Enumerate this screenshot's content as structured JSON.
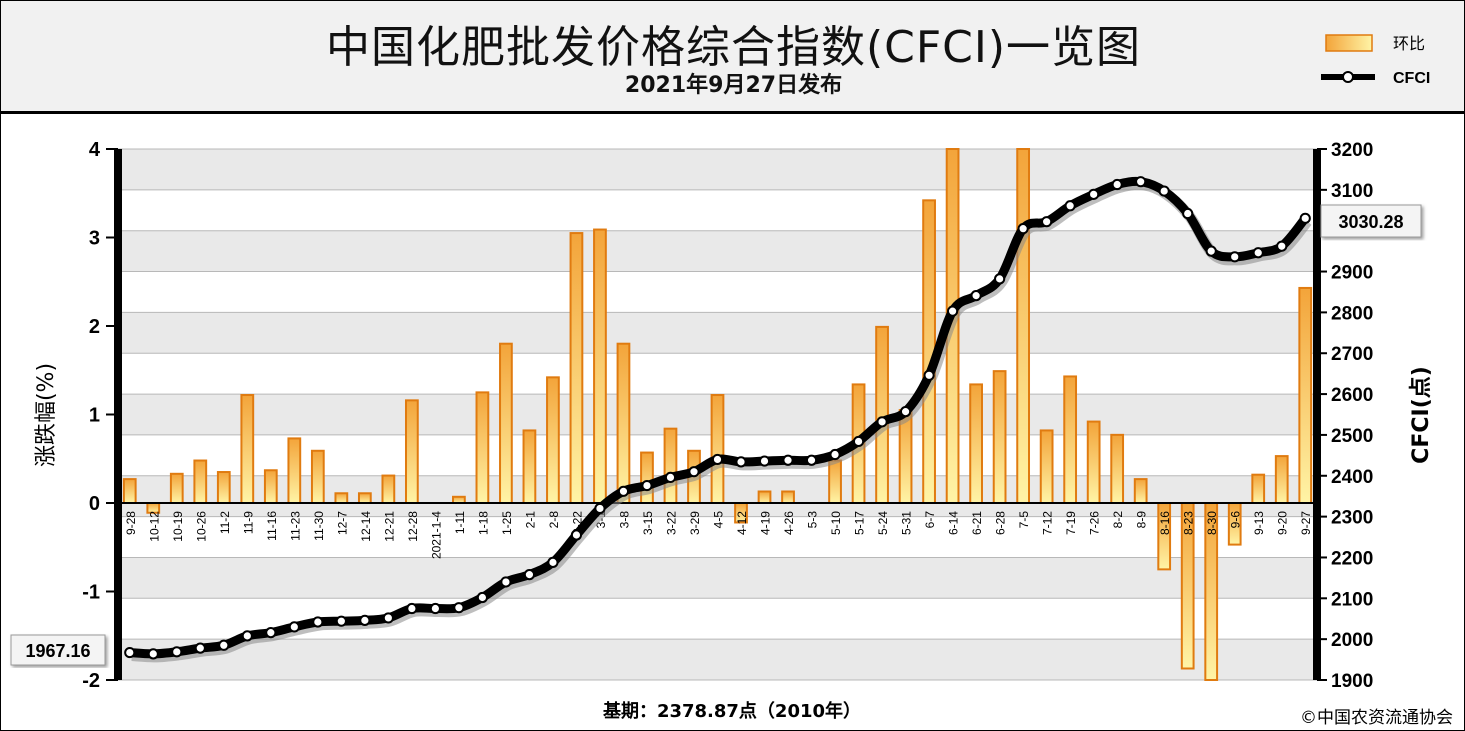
{
  "header": {
    "title": "中国化肥批发价格综合指数(CFCI)一览图",
    "subtitle": "2021年9月27日发布"
  },
  "legend": {
    "bar_label": "环比",
    "line_label": "CFCI"
  },
  "footer": {
    "base_period": "基期：2378.87点（2010年）",
    "copyright": "©中国农资流通协会"
  },
  "callouts": {
    "start_value": "1967.16",
    "end_value": "3030.28"
  },
  "colors": {
    "bar_fill_top": "#f2a53a",
    "bar_fill_bottom": "#fff3a8",
    "bar_border": "#e07b10",
    "line": "#000000",
    "grid_band": "#e9e9e9"
  },
  "chart_data": {
    "type": "bar+line",
    "ylabel_left": "涨跌幅(%)",
    "ylabel_right": "CFCI(点)",
    "ylim_left": [
      -2,
      4
    ],
    "ylim_right": [
      1900,
      3200
    ],
    "yticks_left": [
      "4",
      "3",
      "2",
      "1",
      "0",
      "-1",
      "-2"
    ],
    "yticks_right": [
      "3200",
      "3100",
      "3000",
      "2900",
      "2800",
      "2700",
      "2600",
      "2500",
      "2400",
      "2300",
      "2200",
      "2100",
      "2000",
      "1900"
    ],
    "categories": [
      "9-28",
      "10-12",
      "10-19",
      "10-26",
      "11-2",
      "11-9",
      "11-16",
      "11-23",
      "11-30",
      "12-7",
      "12-14",
      "12-21",
      "12-28",
      "2021-1-4",
      "1-11",
      "1-18",
      "1-25",
      "2-1",
      "2-8",
      "2-22",
      "3-1",
      "3-8",
      "3-15",
      "3-22",
      "3-29",
      "4-5",
      "4-12",
      "4-19",
      "4-26",
      "5-3",
      "5-10",
      "5-17",
      "5-24",
      "5-31",
      "6-7",
      "6-14",
      "6-21",
      "6-28",
      "7-5",
      "7-12",
      "7-19",
      "7-26",
      "8-2",
      "8-9",
      "8-16",
      "8-23",
      "8-30",
      "9-6",
      "9-13",
      "9-20",
      "9-27"
    ],
    "series": [
      {
        "name": "环比",
        "type": "bar",
        "axis": "left",
        "values": [
          0.27,
          -0.11,
          0.33,
          0.48,
          0.35,
          1.22,
          0.37,
          0.73,
          0.59,
          0.11,
          0.11,
          0.31,
          1.16,
          0.0,
          0.07,
          1.25,
          1.8,
          0.82,
          1.42,
          3.05,
          3.09,
          1.8,
          0.57,
          0.84,
          0.59,
          1.22,
          -0.22,
          0.13,
          0.13,
          0.0,
          0.48,
          1.34,
          1.99,
          1.05,
          3.42,
          4.0,
          1.34,
          1.49,
          4.0,
          0.82,
          1.43,
          0.92,
          0.77,
          0.27,
          -0.75,
          -1.87,
          -2.0,
          -0.47,
          0.32,
          0.53,
          2.43
        ]
      },
      {
        "name": "CFCI",
        "type": "line",
        "axis": "right",
        "values": [
          1967.16,
          1964,
          1969,
          1978,
          1985,
          2008,
          2016,
          2030,
          2042,
          2044,
          2046,
          2052,
          2075,
          2075,
          2077,
          2102,
          2140,
          2158,
          2188,
          2255,
          2320,
          2362,
          2376,
          2396,
          2410,
          2440,
          2434,
          2436,
          2438,
          2438,
          2452,
          2484,
          2532,
          2557,
          2646,
          2803,
          2841,
          2882,
          3005,
          3022,
          3061,
          3089,
          3113,
          3120,
          3097,
          3042,
          2950,
          2936,
          2946,
          2962,
          3030.28
        ]
      }
    ]
  }
}
